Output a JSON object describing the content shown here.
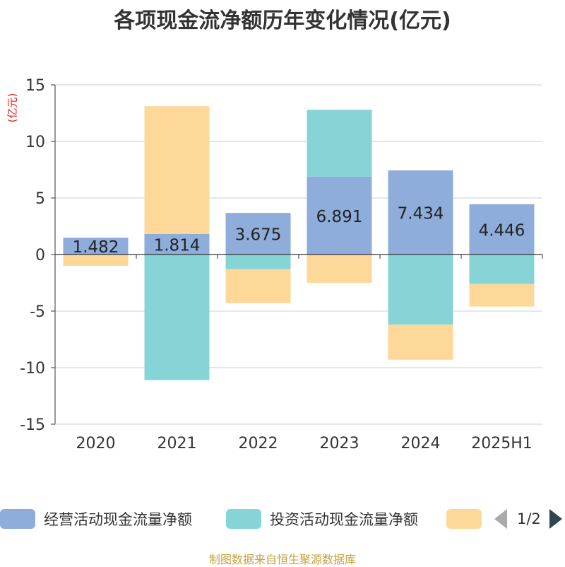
{
  "chart_data": {
    "type": "bar",
    "stacked": true,
    "title": "各项现金流净额历年变化情况(亿元)",
    "unit": "(亿元)",
    "categories": [
      "2020",
      "2021",
      "2022",
      "2023",
      "2024",
      "2025H1"
    ],
    "ylim": [
      -15,
      15
    ],
    "yticks": [
      15,
      10,
      5,
      0,
      -5,
      -10,
      -15
    ],
    "grid": true,
    "legend_position": "bottom",
    "series": [
      {
        "name": "经营活动现金流量净额",
        "color": "#8eaddb",
        "values": [
          1.482,
          1.814,
          3.675,
          6.891,
          7.434,
          4.446
        ],
        "labels": [
          "1.482",
          "1.814",
          "3.675",
          "6.891",
          "7.434",
          "4.446"
        ]
      },
      {
        "name": "投资活动现金流量净额",
        "color": "#86d4d6",
        "values": [
          0,
          -11.1,
          -1.3,
          5.9,
          -6.2,
          -2.6
        ]
      },
      {
        "name": "",
        "color": "#fed899",
        "values": [
          -1.0,
          11.3,
          -3.0,
          -2.5,
          -3.1,
          -2.0
        ]
      }
    ]
  },
  "legend": {
    "page_text": "1/2",
    "prev_icon": "triangle-left-icon",
    "next_icon": "triangle-right-icon"
  },
  "footer": "制图数据来自恒生聚源数据库"
}
